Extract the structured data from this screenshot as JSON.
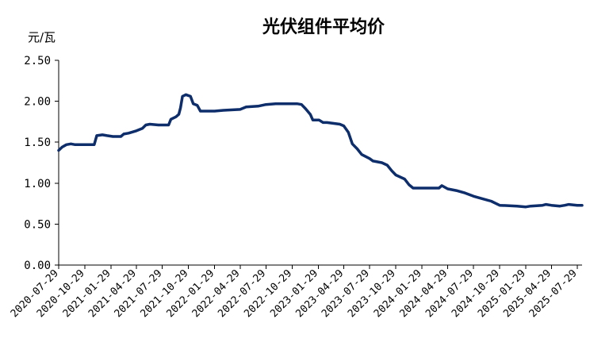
{
  "chart_data": {
    "type": "line",
    "title": "光伏组件平均价",
    "ylabel": "元/瓦",
    "xlabel": "",
    "ylim": [
      0,
      2.5
    ],
    "yticks": [
      "0.00",
      "0.50",
      "1.00",
      "1.50",
      "2.00",
      "2.50"
    ],
    "grid": false,
    "legend": "none",
    "color": "#0d2d6b",
    "xtick_labels": [
      "2020-07-29",
      "2020-10-29",
      "2021-01-29",
      "2021-04-29",
      "2021-07-29",
      "2021-10-29",
      "2022-01-29",
      "2022-04-29",
      "2022-07-29",
      "2022-10-29",
      "2023-01-29",
      "2023-04-29",
      "2023-07-29",
      "2023-10-29",
      "2024-01-29",
      "2024-04-29",
      "2024-07-29",
      "2024-10-29",
      "2025-01-29",
      "2025-04-29",
      "2025-07-29"
    ],
    "series": [
      {
        "name": "",
        "points": [
          [
            "2020-07-29",
            1.4
          ],
          [
            "2020-08-10",
            1.44
          ],
          [
            "2020-08-25",
            1.47
          ],
          [
            "2020-09-10",
            1.48
          ],
          [
            "2020-09-25",
            1.47
          ],
          [
            "2020-10-29",
            1.47
          ],
          [
            "2020-12-01",
            1.47
          ],
          [
            "2020-12-10",
            1.58
          ],
          [
            "2020-12-30",
            1.59
          ],
          [
            "2021-01-15",
            1.58
          ],
          [
            "2021-02-05",
            1.57
          ],
          [
            "2021-03-05",
            1.57
          ],
          [
            "2021-03-15",
            1.6
          ],
          [
            "2021-04-01",
            1.61
          ],
          [
            "2021-04-29",
            1.64
          ],
          [
            "2021-05-20",
            1.67
          ],
          [
            "2021-06-01",
            1.71
          ],
          [
            "2021-06-15",
            1.72
          ],
          [
            "2021-07-15",
            1.71
          ],
          [
            "2021-08-20",
            1.71
          ],
          [
            "2021-08-28",
            1.78
          ],
          [
            "2021-09-15",
            1.81
          ],
          [
            "2021-09-25",
            1.84
          ],
          [
            "2021-10-01",
            1.92
          ],
          [
            "2021-10-08",
            2.06
          ],
          [
            "2021-10-20",
            2.08
          ],
          [
            "2021-11-05",
            2.06
          ],
          [
            "2021-11-15",
            1.97
          ],
          [
            "2021-11-29",
            1.95
          ],
          [
            "2021-12-10",
            1.88
          ],
          [
            "2022-01-29",
            1.88
          ],
          [
            "2022-03-01",
            1.89
          ],
          [
            "2022-04-29",
            1.9
          ],
          [
            "2022-05-20",
            1.93
          ],
          [
            "2022-07-01",
            1.94
          ],
          [
            "2022-07-29",
            1.96
          ],
          [
            "2022-09-01",
            1.97
          ],
          [
            "2022-11-15",
            1.97
          ],
          [
            "2022-12-01",
            1.96
          ],
          [
            "2022-12-15",
            1.91
          ],
          [
            "2023-01-01",
            1.84
          ],
          [
            "2023-01-10",
            1.77
          ],
          [
            "2023-02-01",
            1.77
          ],
          [
            "2023-02-15",
            1.74
          ],
          [
            "2023-03-01",
            1.74
          ],
          [
            "2023-04-15",
            1.72
          ],
          [
            "2023-04-29",
            1.7
          ],
          [
            "2023-05-15",
            1.62
          ],
          [
            "2023-05-29",
            1.48
          ],
          [
            "2023-06-15",
            1.42
          ],
          [
            "2023-07-01",
            1.35
          ],
          [
            "2023-07-29",
            1.3
          ],
          [
            "2023-08-10",
            1.27
          ],
          [
            "2023-09-10",
            1.25
          ],
          [
            "2023-09-29",
            1.22
          ],
          [
            "2023-10-15",
            1.15
          ],
          [
            "2023-10-29",
            1.1
          ],
          [
            "2023-11-29",
            1.05
          ],
          [
            "2023-12-15",
            0.98
          ],
          [
            "2023-12-29",
            0.94
          ],
          [
            "2024-01-29",
            0.94
          ],
          [
            "2024-03-29",
            0.94
          ],
          [
            "2024-04-08",
            0.97
          ],
          [
            "2024-04-29",
            0.93
          ],
          [
            "2024-05-29",
            0.91
          ],
          [
            "2024-06-29",
            0.88
          ],
          [
            "2024-07-29",
            0.84
          ],
          [
            "2024-08-29",
            0.81
          ],
          [
            "2024-09-29",
            0.78
          ],
          [
            "2024-10-29",
            0.73
          ],
          [
            "2024-12-29",
            0.72
          ],
          [
            "2025-01-29",
            0.71
          ],
          [
            "2025-02-15",
            0.72
          ],
          [
            "2025-03-29",
            0.73
          ],
          [
            "2025-04-10",
            0.74
          ],
          [
            "2025-04-29",
            0.73
          ],
          [
            "2025-05-29",
            0.72
          ],
          [
            "2025-06-15",
            0.73
          ],
          [
            "2025-06-29",
            0.74
          ],
          [
            "2025-07-29",
            0.73
          ],
          [
            "2025-08-15",
            0.73
          ]
        ]
      }
    ]
  }
}
